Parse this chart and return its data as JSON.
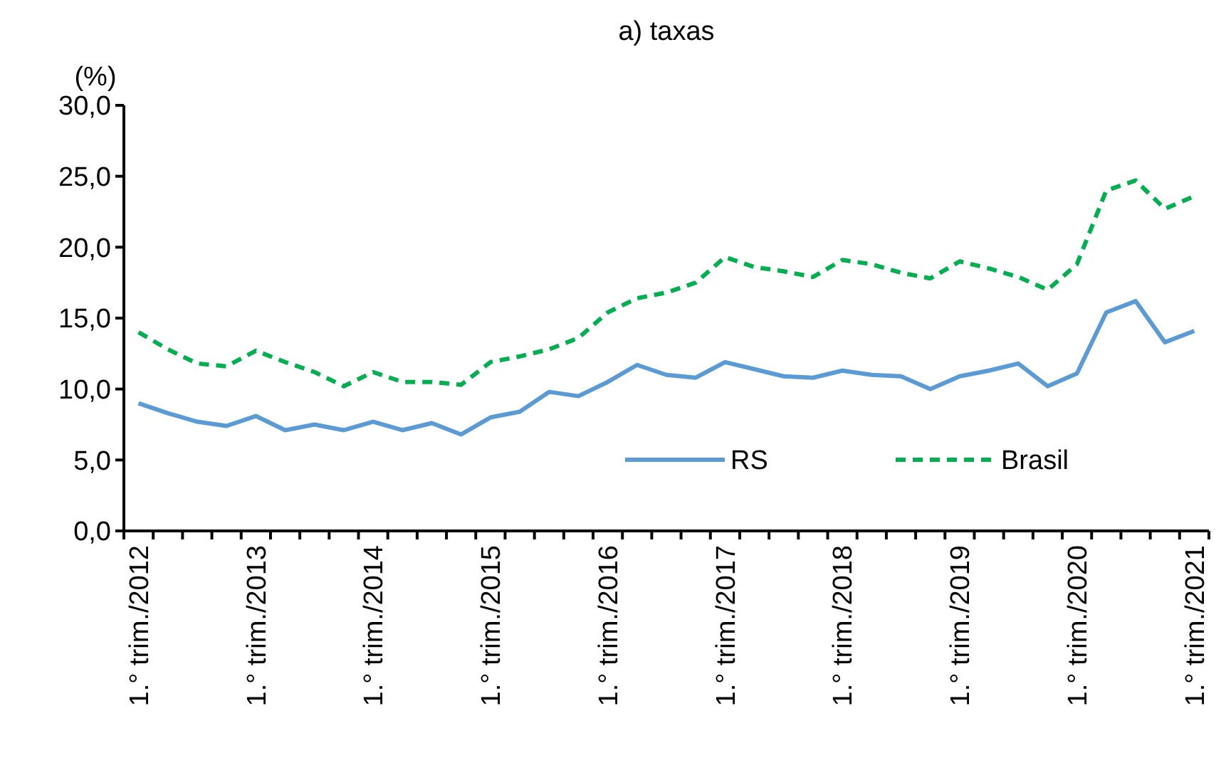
{
  "chart_data": {
    "type": "line",
    "title": "a) taxas",
    "ylabel": "(%)",
    "categories": [
      "1.° trim./2012",
      null,
      null,
      null,
      "1.° trim./2013",
      null,
      null,
      null,
      "1.° trim./2014",
      null,
      null,
      null,
      "1.° trim./2015",
      null,
      null,
      null,
      "1.° trim./2016",
      null,
      null,
      null,
      "1.° trim./2017",
      null,
      null,
      null,
      "1.° trim./2018",
      null,
      null,
      null,
      "1.° trim./2019",
      null,
      null,
      null,
      "1.° trim./2020",
      null,
      null,
      null,
      "1.° trim./2021"
    ],
    "series": [
      {
        "name": "RS",
        "color": "#5b9bd5",
        "line_style": "solid",
        "values": [
          9.0,
          8.3,
          7.7,
          7.4,
          8.1,
          7.1,
          7.5,
          7.1,
          7.7,
          7.1,
          7.6,
          6.8,
          8.0,
          8.4,
          9.8,
          9.5,
          10.5,
          11.7,
          11.0,
          10.8,
          11.9,
          11.4,
          10.9,
          10.8,
          11.3,
          11.0,
          10.9,
          10.0,
          10.9,
          11.3,
          11.8,
          10.2,
          11.1,
          15.4,
          16.2,
          13.3,
          14.1
        ]
      },
      {
        "name": "Brasil",
        "color": "#00b050",
        "line_style": "dashed",
        "values": [
          14.0,
          12.8,
          11.8,
          11.6,
          12.7,
          11.9,
          11.2,
          10.2,
          11.2,
          10.5,
          10.5,
          10.3,
          11.9,
          12.3,
          12.8,
          13.6,
          15.4,
          16.4,
          16.8,
          17.5,
          19.3,
          18.6,
          18.3,
          17.9,
          19.1,
          18.8,
          18.2,
          17.8,
          19.0,
          18.5,
          17.9,
          17.0,
          18.8,
          24.0,
          24.7,
          22.7,
          23.6
        ]
      }
    ],
    "ylim": [
      0,
      30
    ],
    "yticks": [
      {
        "value": 0,
        "label": "0,0"
      },
      {
        "value": 5,
        "label": "5,0"
      },
      {
        "value": 10,
        "label": "10,0"
      },
      {
        "value": 15,
        "label": "15,0"
      },
      {
        "value": 20,
        "label": "20,0"
      },
      {
        "value": 25,
        "label": "25,0"
      },
      {
        "value": 30,
        "label": "30,0"
      }
    ],
    "grid": false,
    "legend": "bottom right",
    "marker": "none"
  }
}
